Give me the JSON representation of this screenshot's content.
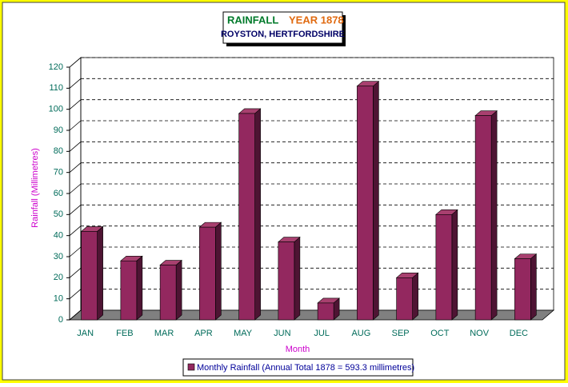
{
  "chart_data": {
    "type": "bar3d",
    "title": "RAINFALL",
    "title_year": "YEAR 1878",
    "subtitle": "ROYSTON, HERTFORDSHIRE",
    "x_label": "Month",
    "y_label": "Rainfall (Millimetres)",
    "categories": [
      "JAN",
      "FEB",
      "MAR",
      "APR",
      "MAY",
      "JUN",
      "JUL",
      "AUG",
      "SEP",
      "OCT",
      "NOV",
      "DEC"
    ],
    "series": [
      {
        "name": "Monthly Rainfall (Annual Total 1878 = 593.3 millimetres)",
        "color": "#93285f",
        "values": [
          42,
          28,
          26,
          44,
          98,
          37,
          8,
          111,
          20,
          50,
          97,
          29
        ]
      }
    ],
    "ylim": [
      0,
      120
    ],
    "yticks": [
      0,
      10,
      20,
      30,
      40,
      50,
      60,
      70,
      80,
      90,
      100,
      110,
      120
    ],
    "grid": true,
    "legend": "bottom"
  }
}
